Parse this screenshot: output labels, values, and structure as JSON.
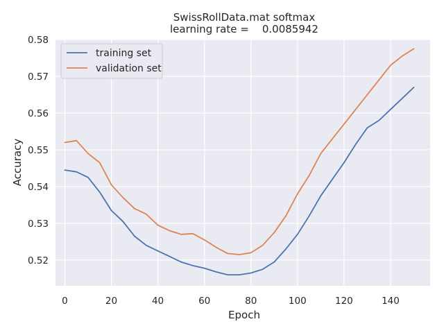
{
  "chart_data": {
    "type": "line",
    "title": "SwissRollData.mat softmax",
    "subtitle": "learning rate =    0.0085942",
    "xlabel": "Epoch",
    "ylabel": "Accuracy",
    "xlim": [
      -4,
      157
    ],
    "ylim": [
      0.513,
      0.58
    ],
    "xticks": [
      0,
      20,
      40,
      60,
      80,
      100,
      120,
      140
    ],
    "yticks": [
      0.52,
      0.53,
      0.54,
      0.55,
      0.56,
      0.57,
      0.58
    ],
    "grid": true,
    "legend_position": "top-left",
    "x": [
      0,
      5,
      10,
      15,
      20,
      25,
      30,
      35,
      40,
      45,
      50,
      55,
      60,
      65,
      70,
      75,
      80,
      85,
      90,
      95,
      100,
      105,
      110,
      115,
      120,
      125,
      130,
      135,
      140,
      145,
      150
    ],
    "series": [
      {
        "name": "training set",
        "color": "#4c72b0",
        "values": [
          0.5445,
          0.544,
          0.5425,
          0.5385,
          0.5335,
          0.5305,
          0.5265,
          0.524,
          0.5225,
          0.521,
          0.5195,
          0.5185,
          0.5178,
          0.5168,
          0.516,
          0.516,
          0.5165,
          0.5175,
          0.5195,
          0.523,
          0.527,
          0.532,
          0.5375,
          0.542,
          0.5465,
          0.5515,
          0.556,
          0.558,
          0.561,
          0.564,
          0.567
        ]
      },
      {
        "name": "validation set",
        "color": "#dd8452",
        "values": [
          0.552,
          0.5525,
          0.549,
          0.5465,
          0.5405,
          0.537,
          0.534,
          0.5325,
          0.5295,
          0.528,
          0.527,
          0.5272,
          0.5255,
          0.5235,
          0.5218,
          0.5215,
          0.522,
          0.524,
          0.5275,
          0.532,
          0.538,
          0.543,
          0.549,
          0.553,
          0.557,
          0.561,
          0.565,
          0.569,
          0.573,
          0.5755,
          0.5775
        ]
      }
    ]
  }
}
